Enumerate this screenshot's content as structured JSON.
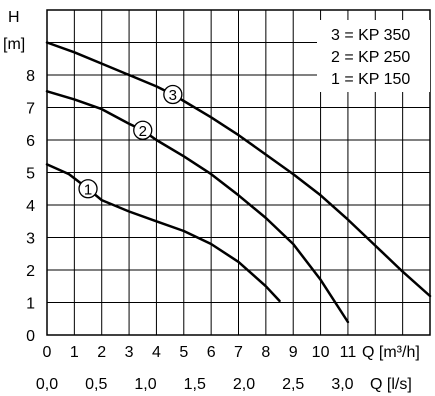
{
  "chart_data": {
    "type": "line",
    "ylabel": "H",
    "yunit": "[m]",
    "xlabel_primary": "Q [m³/h]",
    "xlabel_secondary": "Q [l/s]",
    "xlim": [
      0,
      14
    ],
    "ylim": [
      0,
      10
    ],
    "grid": true,
    "legend_position": "top-right",
    "legend": [
      "3 = KP 350",
      "2 = KP 250",
      "1 = KP 150"
    ],
    "x_ticks": [
      "0",
      "1",
      "2",
      "3",
      "4",
      "5",
      "6",
      "7",
      "8",
      "9",
      "10",
      "11"
    ],
    "y_ticks": [
      "0",
      "1",
      "2",
      "3",
      "4",
      "5",
      "6",
      "7",
      "8"
    ],
    "x2_ticks": [
      {
        "label": "0,0",
        "value": 0
      },
      {
        "label": "0,5",
        "value": 1.8
      },
      {
        "label": "1,0",
        "value": 3.6
      },
      {
        "label": "1,5",
        "value": 5.4
      },
      {
        "label": "2,0",
        "value": 7.2
      },
      {
        "label": "2,5",
        "value": 9.0
      },
      {
        "label": "3,0",
        "value": 10.8
      }
    ],
    "series": [
      {
        "name": "3",
        "points": [
          [
            0,
            9.0
          ],
          [
            1,
            8.7
          ],
          [
            2,
            8.35
          ],
          [
            3,
            8.0
          ],
          [
            4,
            7.65
          ],
          [
            4.6,
            7.4
          ],
          [
            5,
            7.2
          ],
          [
            6,
            6.7
          ],
          [
            7,
            6.15
          ],
          [
            8,
            5.55
          ],
          [
            9,
            4.95
          ],
          [
            10,
            4.3
          ],
          [
            11,
            3.55
          ],
          [
            12,
            2.75
          ],
          [
            13,
            1.95
          ],
          [
            14,
            1.2
          ]
        ],
        "marker_x": 4.6
      },
      {
        "name": "2",
        "points": [
          [
            0,
            7.5
          ],
          [
            1,
            7.25
          ],
          [
            2,
            6.95
          ],
          [
            3,
            6.5
          ],
          [
            3.5,
            6.3
          ],
          [
            4,
            6.0
          ],
          [
            5,
            5.5
          ],
          [
            6,
            4.95
          ],
          [
            7,
            4.3
          ],
          [
            8,
            3.6
          ],
          [
            9,
            2.8
          ],
          [
            10,
            1.7
          ],
          [
            11,
            0.4
          ]
        ],
        "marker_x": 3.5
      },
      {
        "name": "1",
        "points": [
          [
            0,
            5.25
          ],
          [
            0.8,
            4.95
          ],
          [
            1.5,
            4.5
          ],
          [
            2,
            4.15
          ],
          [
            3,
            3.8
          ],
          [
            4,
            3.5
          ],
          [
            5,
            3.2
          ],
          [
            6,
            2.8
          ],
          [
            7,
            2.25
          ],
          [
            8,
            1.5
          ],
          [
            8.5,
            1.05
          ]
        ],
        "marker_x": 1.5
      }
    ]
  }
}
